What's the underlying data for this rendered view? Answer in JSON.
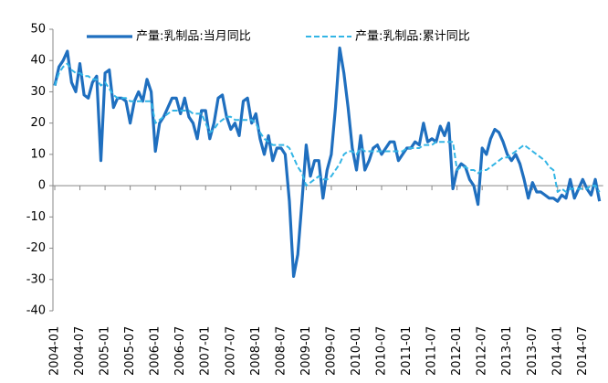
{
  "chart_data": {
    "type": "line",
    "categories": [
      "2004-01",
      null,
      null,
      null,
      null,
      null,
      "2004-07",
      null,
      null,
      null,
      null,
      null,
      "2005-01",
      null,
      null,
      null,
      null,
      null,
      "2005-07",
      null,
      null,
      null,
      null,
      null,
      "2006-01",
      null,
      null,
      null,
      null,
      null,
      "2006-07",
      null,
      null,
      null,
      null,
      null,
      "2007-01",
      null,
      null,
      null,
      null,
      null,
      "2007-07",
      null,
      null,
      null,
      null,
      null,
      "2008-01",
      null,
      null,
      null,
      null,
      null,
      "2008-07",
      null,
      null,
      null,
      null,
      null,
      "2009-01",
      null,
      null,
      null,
      null,
      null,
      "2009-07",
      null,
      null,
      null,
      null,
      null,
      "2010-01",
      null,
      null,
      null,
      null,
      null,
      "2010-07",
      null,
      null,
      null,
      null,
      null,
      "2011-01",
      null,
      null,
      null,
      null,
      null,
      "2011-07",
      null,
      null,
      null,
      null,
      null,
      "2012-01",
      null,
      null,
      null,
      null,
      null,
      "2012-07",
      null,
      null,
      null,
      null,
      null,
      "2013-01",
      null,
      null,
      null,
      null,
      null,
      "2013-07",
      null,
      null,
      null,
      null,
      null,
      "2014-01",
      null,
      null,
      null,
      null,
      null,
      "2014-07",
      null,
      null,
      null,
      null
    ],
    "series": [
      {
        "name": "产量:乳制品:当月同比",
        "color": "#1f6fbf",
        "dash": false,
        "values": [
          32,
          38,
          40,
          43,
          33,
          30,
          39,
          29,
          28,
          33,
          35,
          8,
          36,
          37,
          25,
          28,
          28,
          27,
          20,
          27,
          30,
          27,
          34,
          30,
          11,
          20,
          22,
          25,
          28,
          28,
          23,
          28,
          22,
          20,
          15,
          24,
          24,
          15,
          20,
          28,
          29,
          22,
          18,
          20,
          16,
          27,
          28,
          20,
          23,
          15,
          10,
          16,
          8,
          12,
          12,
          10,
          -5,
          -29,
          -22,
          -5,
          13,
          3,
          8,
          8,
          -4,
          5,
          10,
          25,
          44,
          36,
          25,
          12,
          5,
          16,
          5,
          8,
          12,
          13,
          10,
          12,
          14,
          14,
          8,
          10,
          12,
          12,
          14,
          13,
          20,
          14,
          15,
          14,
          19,
          16,
          20,
          -1,
          5,
          7,
          6,
          2,
          0,
          -6,
          12,
          10,
          15,
          18,
          17,
          14,
          10,
          8,
          10,
          7,
          2,
          -4,
          1,
          -2,
          -2,
          -3,
          -4,
          -4,
          -5,
          -3,
          -4,
          2,
          -4,
          -1,
          2,
          -1,
          -3,
          2,
          -5
        ]
      },
      {
        "name": "产量:乳制品:累计同比",
        "color": "#33b5e5",
        "dash": true,
        "values": [
          32,
          36,
          38,
          39,
          37,
          36,
          36,
          35,
          35,
          34,
          34,
          32,
          33,
          31,
          29,
          28,
          28,
          28,
          27,
          27,
          27,
          27,
          27,
          27,
          20,
          21,
          22,
          23,
          24,
          24,
          24,
          24,
          24,
          23,
          23,
          23,
          20,
          17,
          18,
          20,
          21,
          22,
          22,
          21,
          21,
          21,
          21,
          21,
          20,
          17,
          15,
          14,
          13,
          13,
          13,
          13,
          12,
          9,
          6,
          4,
          0,
          1,
          2,
          3,
          2,
          2,
          3,
          5,
          7,
          10,
          11,
          11,
          10,
          12,
          11,
          11,
          11,
          11,
          11,
          11,
          11,
          11,
          11,
          11,
          12,
          12,
          12,
          12,
          13,
          13,
          13,
          14,
          14,
          14,
          14,
          14,
          5,
          6,
          6,
          5,
          5,
          4,
          5,
          5,
          6,
          7,
          8,
          9,
          9,
          10,
          11,
          12,
          13,
          12,
          11,
          10,
          9,
          8,
          6,
          5,
          -2,
          -1,
          -2,
          -1,
          -1,
          -1,
          -1,
          -1,
          0,
          0,
          -2
        ]
      }
    ],
    "ylim": [
      -40,
      50
    ],
    "yticks": [
      -40,
      -30,
      -20,
      -10,
      0,
      10,
      20,
      30,
      40,
      50
    ]
  }
}
